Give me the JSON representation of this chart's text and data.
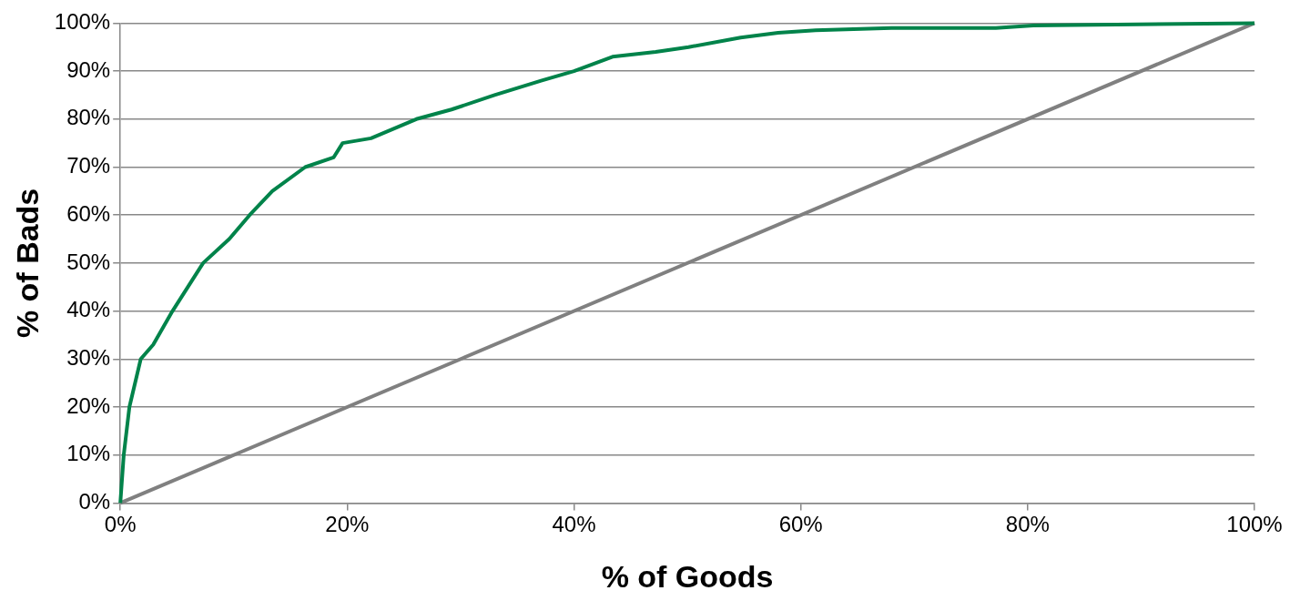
{
  "chart_data": {
    "type": "line",
    "xlabel": "% of Goods",
    "ylabel": "% of Bads",
    "xlim": [
      0,
      100
    ],
    "ylim": [
      0,
      100
    ],
    "xticks": [
      {
        "value": 0,
        "label": "0%"
      },
      {
        "value": 20,
        "label": "20%"
      },
      {
        "value": 40,
        "label": "40%"
      },
      {
        "value": 60,
        "label": "60%"
      },
      {
        "value": 80,
        "label": "80%"
      },
      {
        "value": 100,
        "label": "100%"
      }
    ],
    "yticks": [
      {
        "value": 0,
        "label": "0%"
      },
      {
        "value": 10,
        "label": "10%"
      },
      {
        "value": 20,
        "label": "20%"
      },
      {
        "value": 30,
        "label": "30%"
      },
      {
        "value": 40,
        "label": "40%"
      },
      {
        "value": 50,
        "label": "50%"
      },
      {
        "value": 60,
        "label": "60%"
      },
      {
        "value": 70,
        "label": "70%"
      },
      {
        "value": 80,
        "label": "80%"
      },
      {
        "value": 90,
        "label": "90%"
      },
      {
        "value": 100,
        "label": "100%"
      }
    ],
    "grid": "y",
    "legend": false,
    "marker": "none",
    "line_style": "solid",
    "series": [
      {
        "color": "#00834a",
        "x": [
          0,
          0.3,
          0.8,
          1.8,
          2.9,
          4.6,
          7.3,
          9.6,
          11.4,
          13.4,
          16.3,
          18.8,
          19.6,
          22.1,
          26.1,
          29.2,
          33,
          37.1,
          40,
          43.4,
          47.2,
          50.1,
          54.7,
          58,
          61.3,
          68,
          77.2,
          80.5,
          100
        ],
        "values": [
          0,
          10,
          20,
          30,
          33,
          40,
          50,
          55,
          60,
          65,
          70,
          72,
          75,
          76,
          80,
          82,
          85,
          88,
          90,
          93,
          94,
          95,
          97,
          98,
          98.5,
          99,
          99,
          99.5,
          100
        ]
      },
      {
        "color": "#808080",
        "x": [
          0,
          100
        ],
        "values": [
          0,
          100
        ]
      }
    ]
  }
}
